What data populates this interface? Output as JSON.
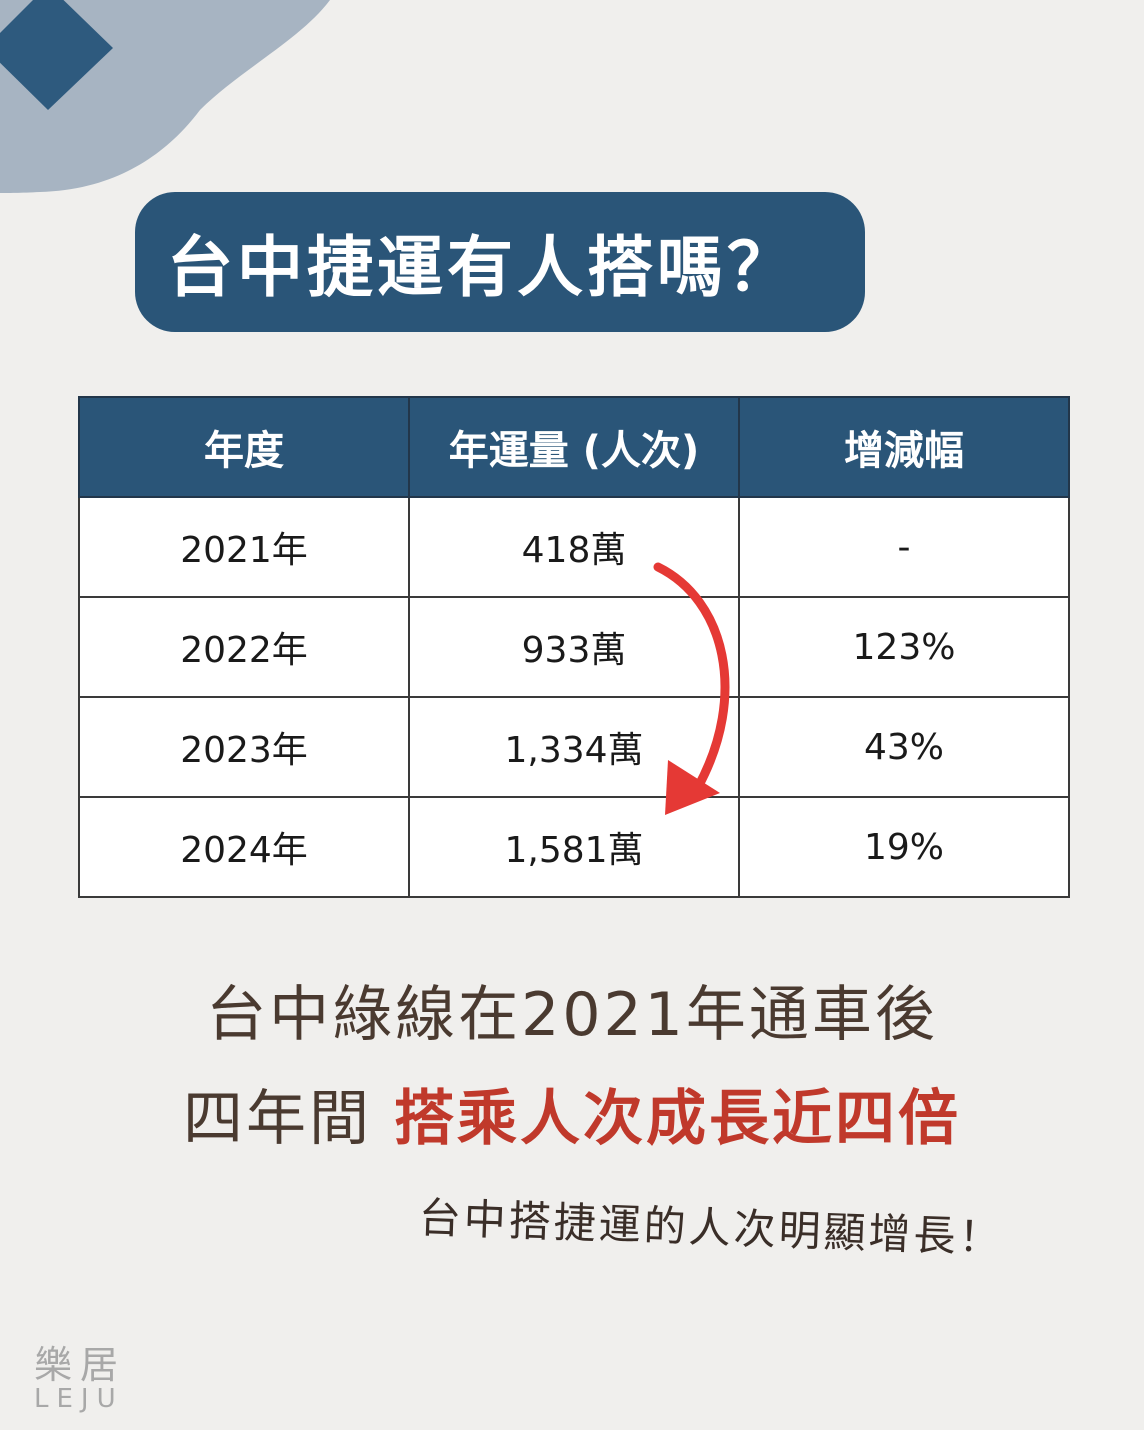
{
  "title": "台中捷運有人搭嗎？",
  "table": {
    "headers": [
      "年度",
      "年運量 (人次)",
      "增減幅"
    ],
    "rows": [
      [
        "2021年",
        "418萬",
        "-"
      ],
      [
        "2022年",
        "933萬",
        "123%"
      ],
      [
        "2023年",
        "1,334萬",
        "43%"
      ],
      [
        "2024年",
        "1,581萬",
        "19%"
      ]
    ]
  },
  "summary": {
    "line1": "台中綠線在2021年通車後",
    "line2_plain": "四年間 ",
    "line2_highlight": "搭乘人次成長近四倍"
  },
  "note": "台中搭捷運的人次明顯增長！",
  "logo": {
    "zh": "樂居",
    "en": "LEJU"
  },
  "colors": {
    "background": "#f0efed",
    "primary_blue": "#2a5578",
    "accent_red": "#c0392b",
    "deco_light": "#a7b4c2"
  },
  "icons": {
    "arrow": "curved-down-arrow-icon",
    "diamond": "diamond-icon"
  }
}
